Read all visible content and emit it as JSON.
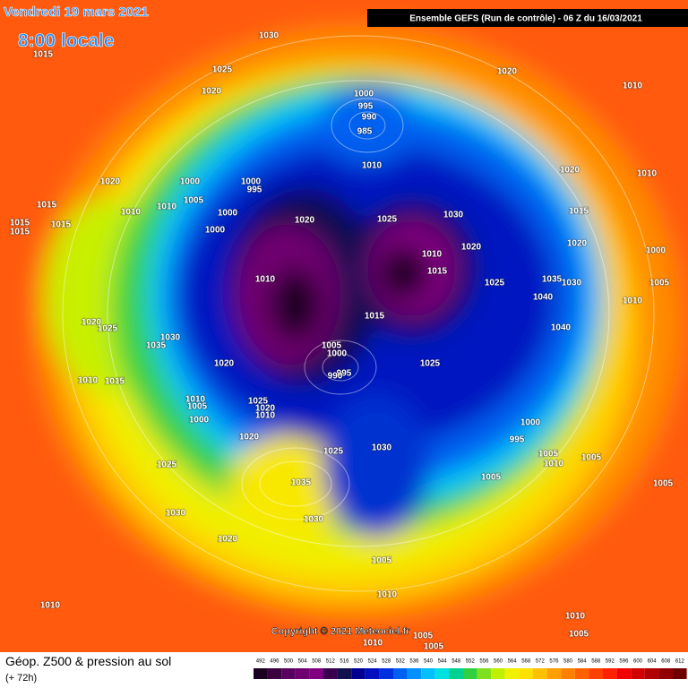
{
  "header": {
    "date": "Vendredi 19 mars 2021",
    "time": "8:00 locale",
    "run": "Ensemble GEFS  (Run de contrôle)  -  06 Z du 16/03/2021"
  },
  "footer": {
    "title": "Géop. Z500 & pression au sol",
    "lead": "(+ 72h)",
    "copyright": "Copyright © 2021 Meteociel.fr"
  },
  "color_scale": {
    "labels": [
      492,
      496,
      500,
      504,
      508,
      512,
      516,
      520,
      524,
      528,
      532,
      536,
      540,
      544,
      548,
      552,
      556,
      560,
      564,
      568,
      572,
      576,
      580,
      584,
      588,
      592,
      596,
      600,
      604,
      608,
      612
    ],
    "colors": [
      "#1a0020",
      "#3a0040",
      "#5a0060",
      "#700070",
      "#800080",
      "#3a0050",
      "#101050",
      "#000090",
      "#0010c0",
      "#0030e0",
      "#0060f0",
      "#0090ff",
      "#00c0ff",
      "#00e0e0",
      "#00d090",
      "#30d040",
      "#80e020",
      "#c0f000",
      "#f0f000",
      "#ffe000",
      "#ffc000",
      "#ffa000",
      "#ff8000",
      "#ff6000",
      "#ff4000",
      "#ff2000",
      "#f00000",
      "#d00000",
      "#b00000",
      "#900000",
      "#700000"
    ]
  },
  "isobars": {
    "labels": [
      "1030",
      "1015",
      "1025",
      "1020",
      "1010",
      "1020",
      "1000",
      "995",
      "990",
      "985",
      "1010",
      "1020",
      "1000",
      "1000",
      "995",
      "1020",
      "1010",
      "1005",
      "1010",
      "1015",
      "1010",
      "1000",
      "1020",
      "1025",
      "1030",
      "1015",
      "1015",
      "1015",
      "1015",
      "1000",
      "1020",
      "1020",
      "1000",
      "1010",
      "1015",
      "1010",
      "1035",
      "1030",
      "1025",
      "1005",
      "1040",
      "1010",
      "1015",
      "1020",
      "1025",
      "1040",
      "1030",
      "1035",
      "1005",
      "1000",
      "995",
      "990",
      "1025",
      "1020",
      "1015",
      "1010",
      "1010",
      "1005",
      "1025",
      "1020",
      "1010",
      "1000",
      "1000",
      "995",
      "1020",
      "1030",
      "1025",
      "1005",
      "1010",
      "1005",
      "1025",
      "1005",
      "1035",
      "1005",
      "1030",
      "1030",
      "1020",
      "1005",
      "1010",
      "1010",
      "1010",
      "1005",
      "1005",
      "1005",
      "1010"
    ]
  }
}
